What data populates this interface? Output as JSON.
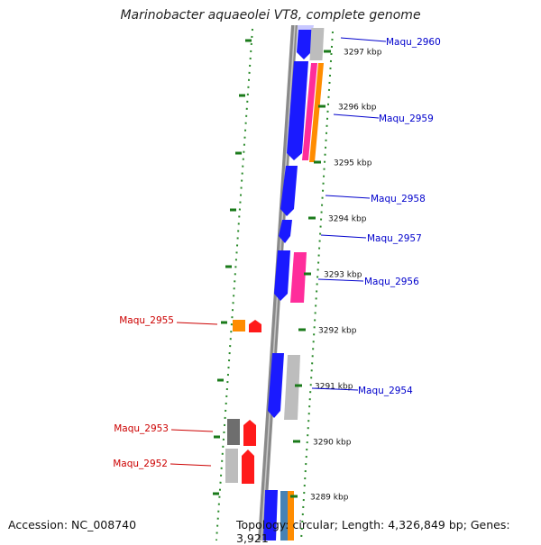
{
  "title": "Marinobacter aquaeolei VT8, complete genome",
  "footer": {
    "accession": "Accession: NC_008740",
    "topology": "Topology: circular; Length: 4,326,849 bp; Genes: 3,921"
  },
  "colors": {
    "blue_label": "#0000cc",
    "red_label": "#cc0000",
    "forward_gene": "#1a1aff",
    "reverse_gene": "#ff1a1a",
    "pink_track": "#ff2d9b",
    "orange_track": "#ff8c00",
    "steelblue_track": "#4682b4",
    "gray_track": "#b5b5b5",
    "darkgray_track": "#6e6e6e",
    "tick_green": "#008000"
  },
  "ruler": [
    "3297 kbp",
    "3296 kbp",
    "3295 kbp",
    "3294 kbp",
    "3293 kbp",
    "3292 kbp",
    "3291 kbp",
    "3290 kbp",
    "3289 kbp"
  ],
  "gene_labels_right": [
    "Maqu_2960",
    "Maqu_2959",
    "Maqu_2958",
    "Maqu_2957",
    "Maqu_2956",
    "Maqu_2954"
  ],
  "gene_labels_left": [
    "Maqu_2955",
    "Maqu_2953",
    "Maqu_2952"
  ]
}
